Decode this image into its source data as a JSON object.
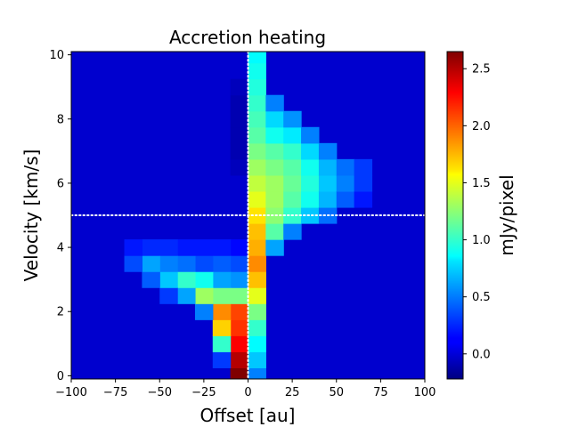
{
  "chart_data": {
    "type": "heatmap",
    "title": "Accretion heating",
    "xlabel": "Offset [au]",
    "ylabel": "Velocity [km/s]",
    "xlim": [
      -100,
      100
    ],
    "ylim": [
      -0.1,
      10.1
    ],
    "x_ticks": [
      -100,
      -75,
      -50,
      -25,
      0,
      25,
      50,
      75,
      100
    ],
    "x_tick_labels": [
      "−100",
      "−75",
      "−50",
      "−25",
      "0",
      "25",
      "50",
      "75",
      "100"
    ],
    "y_ticks": [
      0,
      2,
      4,
      6,
      8,
      10
    ],
    "y_tick_labels": [
      "0",
      "2",
      "4",
      "6",
      "8",
      "10"
    ],
    "colormap": "jet",
    "colorbar": {
      "label": "mJy/pixel",
      "vmin": -0.22,
      "vmax": 2.65,
      "ticks": [
        0.0,
        0.5,
        1.0,
        1.5,
        2.0,
        2.5
      ],
      "tick_labels": [
        "0.0",
        "0.5",
        "1.0",
        "1.5",
        "2.0",
        "2.5"
      ]
    },
    "grid": false,
    "reference_lines": [
      {
        "orientation": "vertical",
        "value": 0,
        "style": "dotted",
        "color": "#ffffff"
      },
      {
        "orientation": "horizontal",
        "value": 5,
        "style": "dotted",
        "color": "#ffffff"
      }
    ],
    "cell_size": {
      "dx": 10,
      "dv": 0.5
    },
    "background_value": 0.0,
    "cells": [
      [
        -5,
        0.0,
        2.65
      ],
      [
        -5,
        0.5,
        2.5
      ],
      [
        -5,
        1.0,
        2.3
      ],
      [
        -5,
        1.5,
        2.15
      ],
      [
        -5,
        2.0,
        2.1
      ],
      [
        -5,
        2.5,
        1.2
      ],
      [
        -5,
        3.0,
        0.55
      ],
      [
        -5,
        3.5,
        0.35
      ],
      [
        -5,
        4.0,
        0.15
      ],
      [
        -5,
        6.5,
        -0.05
      ],
      [
        -5,
        7.0,
        -0.08
      ],
      [
        -5,
        7.5,
        -0.08
      ],
      [
        -5,
        8.0,
        -0.08
      ],
      [
        -5,
        8.5,
        -0.08
      ],
      [
        -5,
        9.0,
        -0.05
      ],
      [
        -15,
        0.5,
        0.3
      ],
      [
        -15,
        1.0,
        1.0
      ],
      [
        -15,
        1.5,
        1.7
      ],
      [
        -15,
        2.0,
        1.9
      ],
      [
        -15,
        2.5,
        1.2
      ],
      [
        -15,
        3.0,
        0.6
      ],
      [
        -15,
        3.5,
        0.4
      ],
      [
        -15,
        4.0,
        0.2
      ],
      [
        -25,
        2.0,
        0.5
      ],
      [
        -25,
        2.5,
        1.3
      ],
      [
        -25,
        3.0,
        0.9
      ],
      [
        -25,
        3.5,
        0.35
      ],
      [
        -25,
        4.0,
        0.2
      ],
      [
        -35,
        2.5,
        0.6
      ],
      [
        -35,
        3.0,
        1.0
      ],
      [
        -35,
        3.5,
        0.45
      ],
      [
        -35,
        4.0,
        0.2
      ],
      [
        -45,
        2.5,
        0.3
      ],
      [
        -45,
        3.0,
        0.7
      ],
      [
        -45,
        3.5,
        0.5
      ],
      [
        -45,
        4.0,
        0.25
      ],
      [
        -55,
        3.0,
        0.4
      ],
      [
        -55,
        3.5,
        0.6
      ],
      [
        -55,
        4.0,
        0.25
      ],
      [
        -65,
        3.5,
        0.35
      ],
      [
        -65,
        4.0,
        0.2
      ],
      [
        5,
        0.0,
        0.5
      ],
      [
        5,
        0.5,
        0.7
      ],
      [
        5,
        1.0,
        0.85
      ],
      [
        5,
        1.5,
        1.0
      ],
      [
        5,
        2.0,
        1.2
      ],
      [
        5,
        2.5,
        1.5
      ],
      [
        5,
        3.0,
        1.75
      ],
      [
        5,
        3.5,
        1.9
      ],
      [
        5,
        4.0,
        1.8
      ],
      [
        5,
        4.5,
        1.75
      ],
      [
        5,
        5.0,
        1.65
      ],
      [
        5,
        5.5,
        1.5
      ],
      [
        5,
        6.0,
        1.4
      ],
      [
        5,
        6.5,
        1.3
      ],
      [
        5,
        7.0,
        1.2
      ],
      [
        5,
        7.5,
        1.1
      ],
      [
        5,
        8.0,
        1.05
      ],
      [
        5,
        8.5,
        1.0
      ],
      [
        5,
        9.0,
        0.95
      ],
      [
        5,
        9.5,
        0.9
      ],
      [
        5,
        10.0,
        0.85
      ],
      [
        15,
        4.0,
        0.6
      ],
      [
        15,
        4.5,
        1.1
      ],
      [
        15,
        5.0,
        1.25
      ],
      [
        15,
        5.5,
        1.3
      ],
      [
        15,
        6.0,
        1.3
      ],
      [
        15,
        6.5,
        1.2
      ],
      [
        15,
        7.0,
        1.1
      ],
      [
        15,
        7.5,
        0.9
      ],
      [
        15,
        8.0,
        0.75
      ],
      [
        15,
        8.5,
        0.5
      ],
      [
        25,
        4.5,
        0.5
      ],
      [
        25,
        5.0,
        1.0
      ],
      [
        25,
        5.5,
        1.1
      ],
      [
        25,
        6.0,
        1.15
      ],
      [
        25,
        6.5,
        1.1
      ],
      [
        25,
        7.0,
        1.0
      ],
      [
        25,
        7.5,
        0.8
      ],
      [
        25,
        8.0,
        0.55
      ],
      [
        35,
        5.0,
        0.7
      ],
      [
        35,
        5.5,
        0.9
      ],
      [
        35,
        6.0,
        0.95
      ],
      [
        35,
        6.5,
        0.9
      ],
      [
        35,
        7.0,
        0.75
      ],
      [
        35,
        7.5,
        0.5
      ],
      [
        45,
        5.0,
        0.45
      ],
      [
        45,
        5.5,
        0.65
      ],
      [
        45,
        6.0,
        0.7
      ],
      [
        45,
        6.5,
        0.65
      ],
      [
        45,
        7.0,
        0.5
      ],
      [
        55,
        5.5,
        0.4
      ],
      [
        55,
        6.0,
        0.5
      ],
      [
        55,
        6.5,
        0.45
      ],
      [
        65,
        5.5,
        0.2
      ],
      [
        65,
        6.0,
        0.3
      ],
      [
        65,
        6.5,
        0.3
      ]
    ]
  }
}
